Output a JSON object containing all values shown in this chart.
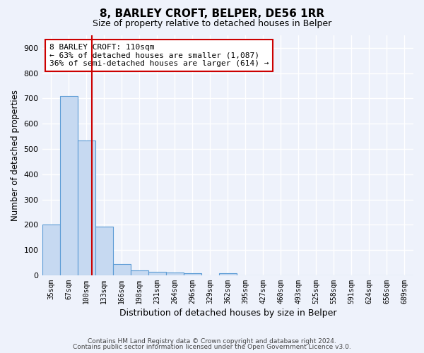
{
  "title": "8, BARLEY CROFT, BELPER, DE56 1RR",
  "subtitle": "Size of property relative to detached houses in Belper",
  "xlabel": "Distribution of detached houses by size in Belper",
  "ylabel": "Number of detached properties",
  "bins": [
    "35sqm",
    "67sqm",
    "100sqm",
    "133sqm",
    "166sqm",
    "198sqm",
    "231sqm",
    "264sqm",
    "296sqm",
    "329sqm",
    "362sqm",
    "395sqm",
    "427sqm",
    "460sqm",
    "493sqm",
    "525sqm",
    "558sqm",
    "591sqm",
    "624sqm",
    "656sqm",
    "689sqm"
  ],
  "values": [
    200,
    710,
    535,
    192,
    45,
    20,
    15,
    12,
    8,
    0,
    8,
    0,
    0,
    0,
    0,
    0,
    0,
    0,
    0,
    0,
    0
  ],
  "bar_color": "#c6d9f1",
  "bar_edge_color": "#5b9bd5",
  "line_color": "#cc0000",
  "annotation_line1": "8 BARLEY CROFT: 110sqm",
  "annotation_line2": "← 63% of detached houses are smaller (1,087)",
  "annotation_line3": "36% of semi-detached houses are larger (614) →",
  "annotation_box_color": "#ffffff",
  "annotation_box_edge": "#cc0000",
  "footer_line1": "Contains HM Land Registry data © Crown copyright and database right 2024.",
  "footer_line2": "Contains public sector information licensed under the Open Government Licence v3.0.",
  "ylim": [
    0,
    950
  ],
  "yticks": [
    0,
    100,
    200,
    300,
    400,
    500,
    600,
    700,
    800,
    900
  ],
  "background_color": "#eef2fb",
  "grid_color": "#ffffff",
  "title_fontsize": 11,
  "subtitle_fontsize": 9
}
